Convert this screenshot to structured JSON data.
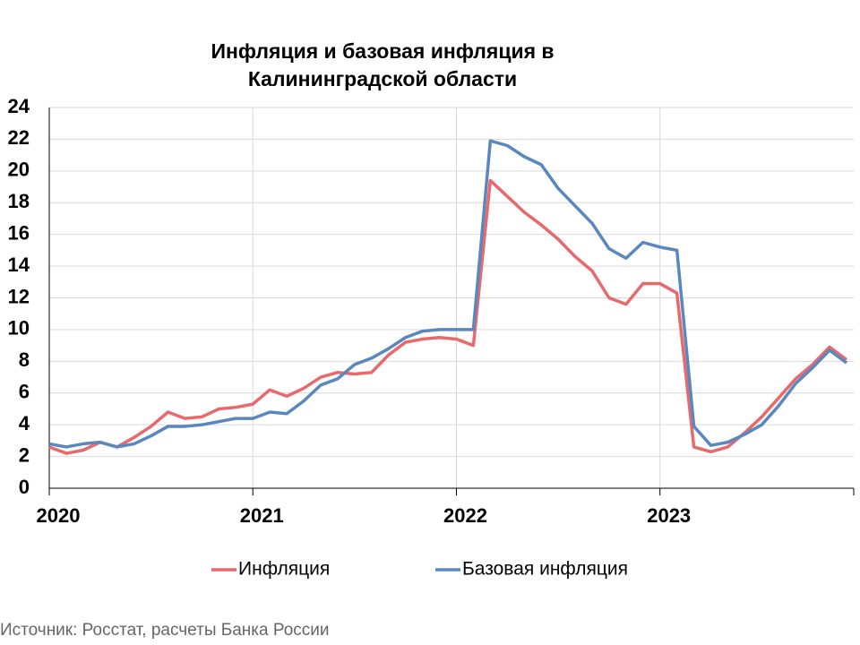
{
  "chart_data": {
    "type": "line",
    "title": [
      "Инфляция и базовая инфляция в",
      "Калининградской области"
    ],
    "categories": [
      "2020",
      null,
      null,
      null,
      null,
      null,
      null,
      null,
      null,
      null,
      null,
      null,
      "2021",
      null,
      null,
      null,
      null,
      null,
      null,
      null,
      null,
      null,
      null,
      null,
      "2022",
      null,
      null,
      null,
      null,
      null,
      null,
      null,
      null,
      null,
      null,
      null,
      "2023",
      null,
      null,
      null,
      null,
      null,
      null,
      null,
      null,
      null,
      null,
      null
    ],
    "series": [
      {
        "name": "Инфляция",
        "color": "#e8696c",
        "values": [
          2.6,
          2.2,
          2.4,
          2.9,
          2.6,
          3.2,
          3.9,
          4.8,
          4.4,
          4.5,
          5.0,
          5.1,
          5.3,
          6.2,
          5.8,
          6.3,
          7.0,
          7.3,
          7.2,
          7.3,
          8.4,
          9.2,
          9.4,
          9.5,
          9.4,
          9.0,
          19.4,
          18.4,
          17.4,
          16.6,
          15.7,
          14.6,
          13.7,
          12.0,
          11.6,
          12.9,
          12.9,
          12.3,
          2.6,
          2.3,
          2.6,
          3.5,
          4.5,
          5.7,
          6.9,
          7.8,
          8.9,
          8.1
        ]
      },
      {
        "name": "Базовая инфляция",
        "color": "#5b87bf",
        "values": [
          2.8,
          2.6,
          2.8,
          2.9,
          2.6,
          2.8,
          3.3,
          3.9,
          3.9,
          4.0,
          4.2,
          4.4,
          4.4,
          4.8,
          4.7,
          5.5,
          6.5,
          6.9,
          7.8,
          8.2,
          8.8,
          9.5,
          9.9,
          10.0,
          10.0,
          10.0,
          21.9,
          21.6,
          20.9,
          20.4,
          18.9,
          17.8,
          16.7,
          15.1,
          14.5,
          15.5,
          15.2,
          15.0,
          3.9,
          2.7,
          2.9,
          3.4,
          4.0,
          5.2,
          6.6,
          7.6,
          8.7,
          7.9
        ]
      }
    ],
    "ylim": [
      0,
      24
    ],
    "yticks": [
      0,
      2,
      4,
      6,
      8,
      10,
      12,
      14,
      16,
      18,
      20,
      22,
      24
    ],
    "grid": true,
    "legend": "bottom",
    "source": "Источник: Росстат, расчеты Банка России"
  }
}
